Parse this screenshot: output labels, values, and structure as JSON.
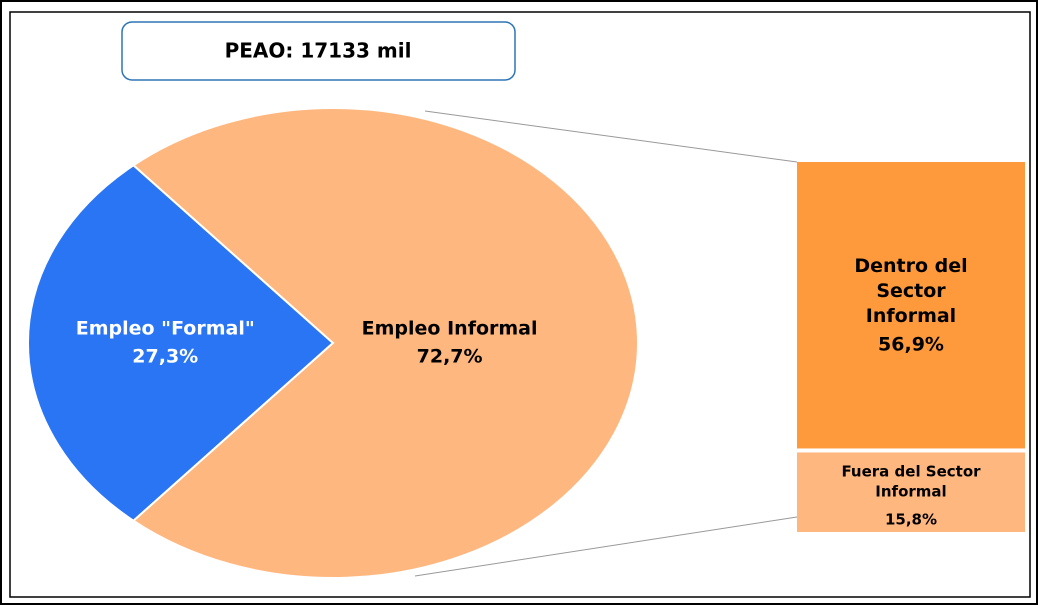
{
  "chart_data": {
    "type": "pie",
    "title": "PEAO: 17133 mil",
    "categories": [
      "Empleo \"Formal\"",
      "Empleo Informal"
    ],
    "values": [
      27.3,
      72.7
    ],
    "value_labels": [
      "27,3%",
      "72,7%"
    ],
    "colors": [
      "#2a75f3",
      "#ffb780"
    ],
    "breakdown": {
      "type": "bar",
      "categories": [
        "Dentro del Sector Informal",
        "Fuera del Sector Informal"
      ],
      "values": [
        56.9,
        15.8
      ],
      "value_labels": [
        "56,9%",
        "15,8%"
      ],
      "colors": [
        "#ff9a3c",
        "#ffb780"
      ]
    }
  }
}
